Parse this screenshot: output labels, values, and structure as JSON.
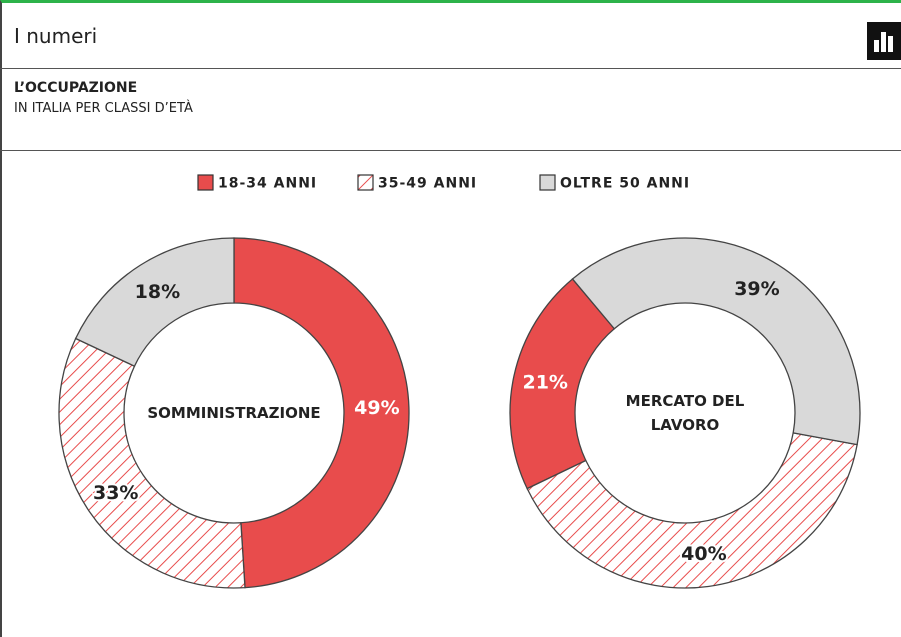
{
  "header": {
    "title": "I numeri"
  },
  "chart_data": {
    "type": "pie",
    "title": "L’OCCUPAZIONE",
    "subtitle": "IN ITALIA PER CLASSI D’ETÀ",
    "categories": [
      "18-34 ANNI",
      "35-49 ANNI",
      "OLTRE 50 ANNI"
    ],
    "colors": [
      "#e84c4c",
      "#e84c4c",
      "#d9d9d9"
    ],
    "patterns": [
      "solid",
      "hatch",
      "solid"
    ],
    "series": [
      {
        "name": "SOMMINISTRAZIONE",
        "values": [
          49,
          33,
          18
        ],
        "value_labels": [
          "49%",
          "33%",
          "18%"
        ]
      },
      {
        "name": "MERCATO DEL LAVORO",
        "values": [
          21,
          40,
          39
        ],
        "value_labels": [
          "21%",
          "40%",
          "39%"
        ]
      }
    ]
  }
}
